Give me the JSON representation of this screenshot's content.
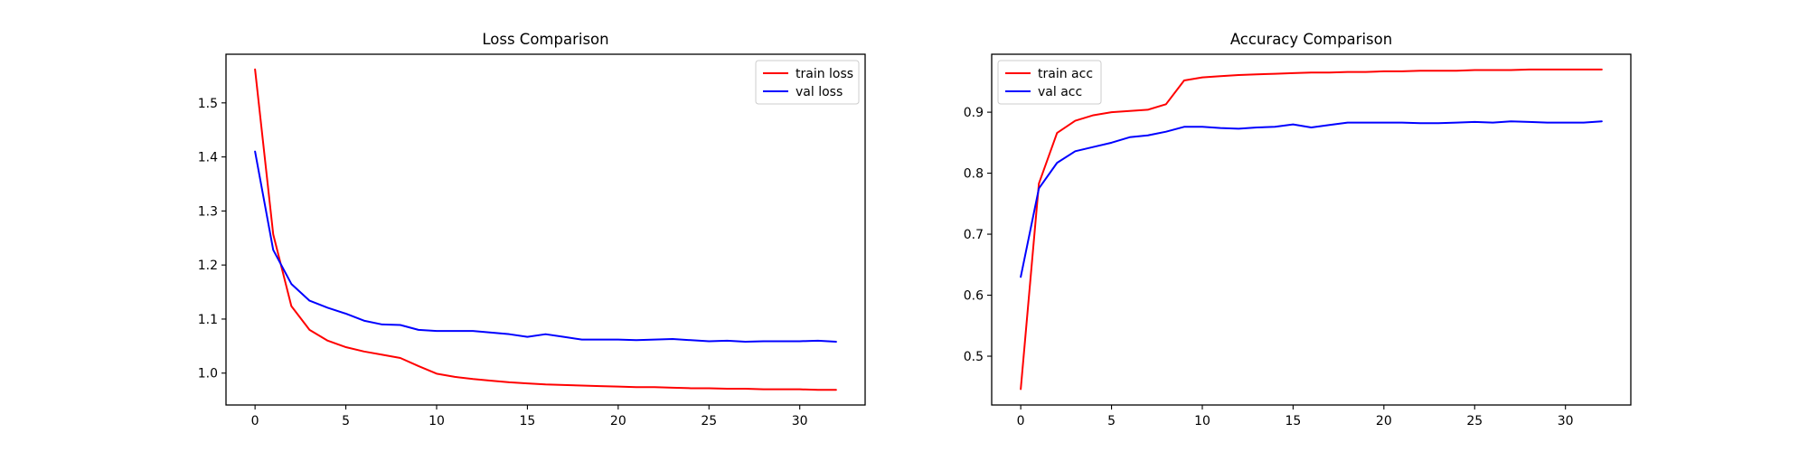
{
  "chart_data": [
    {
      "type": "line",
      "title": "Loss Comparison",
      "xlabel": "",
      "ylabel": "",
      "xlim": [
        -1.6,
        33.6
      ],
      "ylim": [
        0.941,
        1.59
      ],
      "xticks": [
        0,
        5,
        10,
        15,
        20,
        25,
        30
      ],
      "yticks": [
        1.0,
        1.1,
        1.2,
        1.3,
        1.4,
        1.5
      ],
      "ytick_decimals": 1,
      "legend_position": "top-right",
      "grid": false,
      "x": [
        0,
        1,
        2,
        3,
        4,
        5,
        6,
        7,
        8,
        9,
        10,
        11,
        12,
        13,
        14,
        15,
        16,
        17,
        18,
        19,
        20,
        21,
        22,
        23,
        24,
        25,
        26,
        27,
        28,
        29,
        30,
        31,
        32
      ],
      "series": [
        {
          "name": "train loss",
          "color": "#ff0000",
          "values": [
            1.562,
            1.257,
            1.124,
            1.08,
            1.06,
            1.048,
            1.04,
            1.034,
            1.028,
            1.013,
            0.999,
            0.993,
            0.989,
            0.986,
            0.983,
            0.981,
            0.979,
            0.978,
            0.977,
            0.976,
            0.975,
            0.974,
            0.974,
            0.973,
            0.972,
            0.972,
            0.971,
            0.971,
            0.97,
            0.97,
            0.97,
            0.969,
            0.969
          ]
        },
        {
          "name": "val loss",
          "color": "#0000ff",
          "values": [
            1.41,
            1.228,
            1.165,
            1.134,
            1.121,
            1.11,
            1.097,
            1.09,
            1.089,
            1.08,
            1.078,
            1.078,
            1.078,
            1.075,
            1.072,
            1.067,
            1.072,
            1.067,
            1.062,
            1.062,
            1.062,
            1.061,
            1.062,
            1.063,
            1.061,
            1.059,
            1.06,
            1.058,
            1.059,
            1.059,
            1.059,
            1.06,
            1.058
          ]
        }
      ]
    },
    {
      "type": "line",
      "title": "Accuracy Comparison",
      "xlabel": "",
      "ylabel": "",
      "xlim": [
        -1.6,
        33.6
      ],
      "ylim": [
        0.42,
        0.995
      ],
      "xticks": [
        0,
        5,
        10,
        15,
        20,
        25,
        30
      ],
      "yticks": [
        0.5,
        0.6,
        0.7,
        0.8,
        0.9
      ],
      "ytick_decimals": 1,
      "legend_position": "top-left",
      "grid": false,
      "x": [
        0,
        1,
        2,
        3,
        4,
        5,
        6,
        7,
        8,
        9,
        10,
        11,
        12,
        13,
        14,
        15,
        16,
        17,
        18,
        19,
        20,
        21,
        22,
        23,
        24,
        25,
        26,
        27,
        28,
        29,
        30,
        31,
        32
      ],
      "series": [
        {
          "name": "train acc",
          "color": "#ff0000",
          "values": [
            0.446,
            0.783,
            0.866,
            0.886,
            0.895,
            0.9,
            0.902,
            0.904,
            0.913,
            0.952,
            0.957,
            0.959,
            0.961,
            0.962,
            0.963,
            0.964,
            0.965,
            0.965,
            0.966,
            0.966,
            0.967,
            0.967,
            0.968,
            0.968,
            0.968,
            0.969,
            0.969,
            0.969,
            0.97,
            0.97,
            0.97,
            0.97,
            0.97
          ]
        },
        {
          "name": "val acc",
          "color": "#0000ff",
          "values": [
            0.63,
            0.775,
            0.817,
            0.836,
            0.843,
            0.85,
            0.859,
            0.862,
            0.868,
            0.876,
            0.876,
            0.874,
            0.873,
            0.875,
            0.876,
            0.88,
            0.875,
            0.879,
            0.883,
            0.883,
            0.883,
            0.883,
            0.882,
            0.882,
            0.883,
            0.884,
            0.883,
            0.885,
            0.884,
            0.883,
            0.883,
            0.883,
            0.885
          ]
        }
      ]
    }
  ]
}
